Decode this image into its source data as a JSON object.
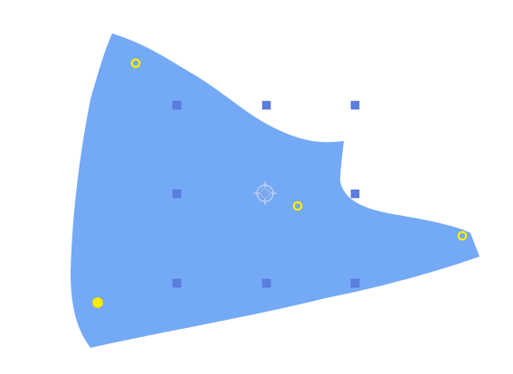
{
  "canvas": {
    "background": "#ffffff"
  },
  "shape": {
    "fill": "#74a9f5",
    "kind": "warped-polygon"
  },
  "handles": {
    "grid_color": "#5b7ee0",
    "grid_icon": "square-handle-icon",
    "control_ring_color": "#ffee00",
    "control_icon": "yellow-ring-handle-icon",
    "selected_icon": "yellow-dot-handle-icon",
    "center_icon": "crosshair-target-icon"
  }
}
